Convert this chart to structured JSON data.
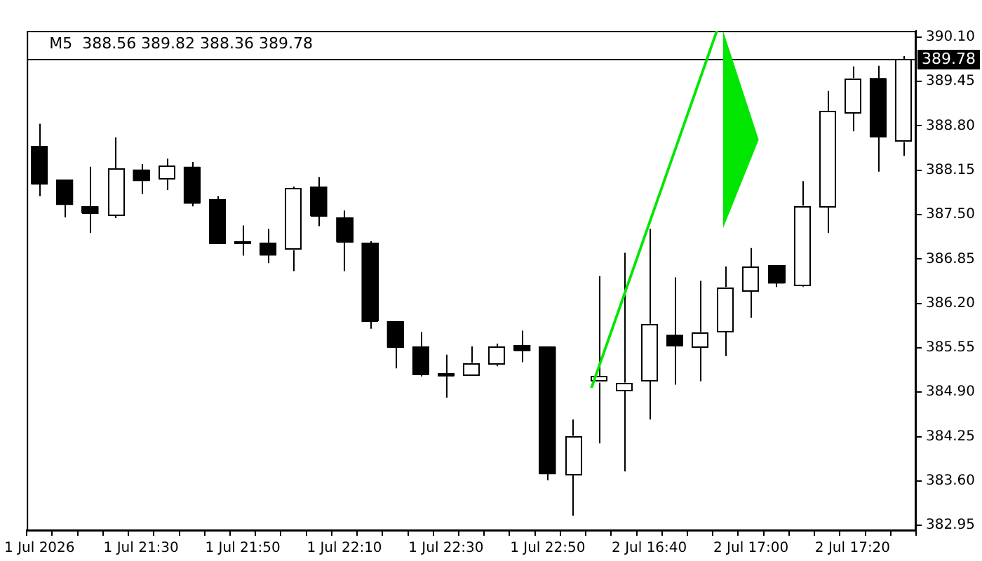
{
  "chart_data": {
    "type": "candlestick",
    "title": "M5  388.56 389.82 388.36 389.78",
    "categories": [
      "1 Jul 2026",
      null,
      null,
      null,
      "1 Jul 21:30",
      null,
      null,
      null,
      "1 Jul 21:50",
      null,
      null,
      null,
      "1 Jul 22:10",
      null,
      null,
      null,
      "1 Jul 22:30",
      null,
      null,
      null,
      "1 Jul 22:50",
      null,
      null,
      null,
      "2 Jul 16:40",
      null,
      null,
      null,
      "2 Jul 17:00",
      null,
      null,
      null,
      "2 Jul 17:20",
      null,
      null
    ],
    "ohlc": [
      [
        388.5,
        388.83,
        387.77,
        387.94
      ],
      [
        388.01,
        388.01,
        387.46,
        387.64
      ],
      [
        387.62,
        388.2,
        387.23,
        387.51
      ],
      [
        387.49,
        388.63,
        387.45,
        388.18
      ],
      [
        388.16,
        388.24,
        387.8,
        387.99
      ],
      [
        388.01,
        388.32,
        387.86,
        388.22
      ],
      [
        388.2,
        388.27,
        387.62,
        387.66
      ],
      [
        387.72,
        387.77,
        387.07,
        387.07
      ],
      [
        387.07,
        387.34,
        386.9,
        387.11
      ],
      [
        387.09,
        387.29,
        386.79,
        386.9
      ],
      [
        386.98,
        387.91,
        386.67,
        387.89
      ],
      [
        387.91,
        388.05,
        387.33,
        387.47
      ],
      [
        387.46,
        387.56,
        386.67,
        387.1
      ],
      [
        387.09,
        387.11,
        385.83,
        385.93
      ],
      [
        385.94,
        385.94,
        385.25,
        385.56
      ],
      [
        385.56,
        385.78,
        385.13,
        385.15
      ],
      [
        385.18,
        385.45,
        384.82,
        385.13
      ],
      [
        385.15,
        385.57,
        385.15,
        385.33
      ],
      [
        385.3,
        385.61,
        385.28,
        385.56
      ],
      [
        385.59,
        385.8,
        385.34,
        385.5
      ],
      [
        385.56,
        385.56,
        383.61,
        383.7
      ],
      [
        383.69,
        384.5,
        383.09,
        384.26
      ],
      [
        385.04,
        386.6,
        384.15,
        385.13
      ],
      [
        384.92,
        386.94,
        383.74,
        385.04
      ],
      [
        385.06,
        387.29,
        384.5,
        385.9
      ],
      [
        385.74,
        386.58,
        385.01,
        385.58
      ],
      [
        385.56,
        386.53,
        385.06,
        385.78
      ],
      [
        385.78,
        386.74,
        385.43,
        386.44
      ],
      [
        386.38,
        387.01,
        385.99,
        386.74
      ],
      [
        386.76,
        386.76,
        386.44,
        386.49
      ],
      [
        386.45,
        387.99,
        386.44,
        387.63
      ],
      [
        387.61,
        389.31,
        387.23,
        389.02
      ],
      [
        388.98,
        389.67,
        388.72,
        389.5
      ],
      [
        389.5,
        389.68,
        388.13,
        388.64
      ],
      [
        388.56,
        389.82,
        388.36,
        389.78
      ]
    ],
    "colors": [
      "#000000",
      "#000000",
      "#000000",
      "#ffffff",
      "#000000",
      "#ffffff",
      "#000000",
      "#000000",
      "#ffffff",
      "#000000",
      "#ffffff",
      "#000000",
      "#000000",
      "#000000",
      "#000000",
      "#000000",
      "#000000",
      "#ffffff",
      "#ffffff",
      "#000000",
      "#000000",
      "#ffffff",
      "#ffffff",
      "#ffffff",
      "#ffffff",
      "#000000",
      "#ffffff",
      "#ffffff",
      "#ffffff",
      "#000000",
      "#ffffff",
      "#ffffff",
      "#ffffff",
      "#000000",
      "#ffffff"
    ],
    "ylim": [
      382.88,
      390.19
    ],
    "yticks": [
      {
        "value": 390.1,
        "label": "390.10"
      },
      389.45,
      {
        "value": 388.8,
        "label": "388.80"
      },
      388.15,
      {
        "value": 387.5,
        "label": "387.50"
      },
      386.85,
      {
        "value": 386.2,
        "label": "386.20"
      },
      385.55,
      {
        "value": 384.9,
        "label": "384.90"
      },
      384.25,
      {
        "value": 383.6,
        "label": "383.60"
      },
      382.95
    ],
    "ref_lines": [
      {
        "axis": "y",
        "value": 389.78,
        "label": "389.78",
        "color": "#000000"
      }
    ],
    "grid": false,
    "legend": false
  }
}
